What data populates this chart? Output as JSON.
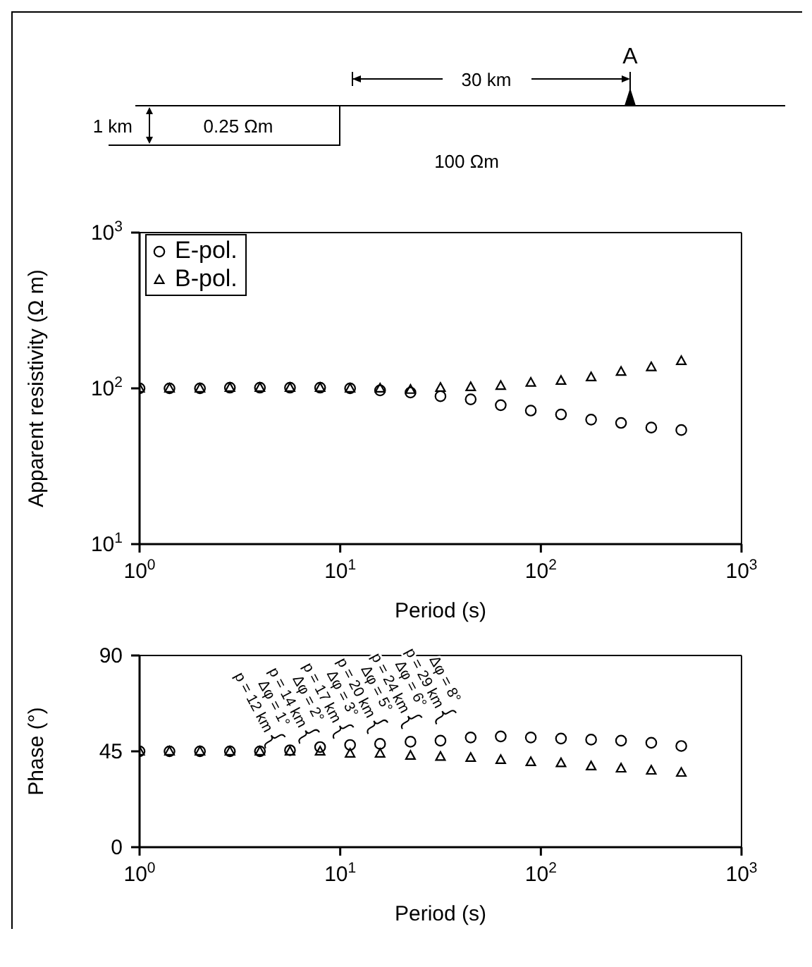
{
  "chart_data": [
    {
      "type": "other",
      "annotations": [
        "A",
        "30 km",
        "1 km",
        "0.25 Ωm",
        "100 Ωm"
      ]
    },
    {
      "type": "scatter",
      "xlabel": "Period (s)",
      "ylabel": "Apparent resistivity (Ω m)",
      "log": "xy",
      "legend": "top left",
      "grid": false,
      "x": [
        1,
        1.41,
        2,
        2.82,
        3.98,
        5.62,
        7.94,
        11.2,
        15.8,
        22.4,
        31.6,
        44.7,
        63.1,
        89.1,
        126,
        178,
        251,
        355,
        501
      ],
      "series": [
        {
          "name": "E-pol.",
          "color": "#000000",
          "marker": "circle",
          "values": [
            100,
            100,
            100,
            101,
            101,
            101,
            101,
            100,
            97,
            94,
            89,
            85,
            78,
            72,
            68,
            63,
            60,
            56,
            54
          ]
        },
        {
          "name": "B-pol.",
          "color": "#000000",
          "marker": "triangle",
          "values": [
            100,
            100,
            100,
            101,
            101,
            101,
            101,
            100,
            100,
            98,
            101,
            102,
            104,
            109,
            112,
            118,
            128,
            137,
            150
          ]
        }
      ],
      "xlim": [
        1,
        1000
      ],
      "ylim": [
        10,
        1000
      ],
      "xticks": [
        {
          "value": 1,
          "label": "10$^{0}$"
        },
        {
          "value": 10,
          "label": "10$^{1}$"
        },
        {
          "value": 100,
          "label": "10$^{2}$"
        },
        {
          "value": 1000,
          "label": "10$^{3}$"
        }
      ],
      "yticks": [
        {
          "value": 10,
          "label": "10$^{1}$"
        },
        {
          "value": 100,
          "label": "10$^{2}$"
        },
        {
          "value": 1000,
          "label": "10$^{3}$"
        }
      ]
    },
    {
      "type": "scatter",
      "xlabel": "Period (s)",
      "ylabel": "Phase (°)",
      "log": "x",
      "grid": false,
      "x": [
        1,
        1.41,
        2,
        2.82,
        3.98,
        5.62,
        7.94,
        11.2,
        15.8,
        22.4,
        31.6,
        44.7,
        63.1,
        89.1,
        126,
        178,
        251,
        355,
        501
      ],
      "series": [
        {
          "color": "#000000",
          "marker": "circle",
          "values": [
            45,
            45,
            45,
            45,
            45,
            45.5,
            47,
            48,
            48.5,
            49.5,
            50,
            51.5,
            52,
            51.5,
            51,
            50.5,
            50,
            49,
            47.5
          ]
        },
        {
          "color": "#000000",
          "marker": "triangle",
          "values": [
            45,
            45,
            45,
            45,
            45,
            45,
            45,
            44,
            44,
            43,
            42.5,
            42,
            41,
            40,
            39.5,
            38,
            37,
            36,
            35
          ]
        }
      ],
      "xlim": [
        1,
        1000
      ],
      "ylim": [
        0,
        90
      ],
      "xticks": [
        {
          "value": 1,
          "label": "10$^{0}$"
        },
        {
          "value": 10,
          "label": "10$^{1}$"
        },
        {
          "value": 100,
          "label": "10$^{2}$"
        },
        {
          "value": 1000,
          "label": "10$^{3}$"
        }
      ],
      "yticks": [
        0,
        45,
        90
      ],
      "annotations": [
        "p = 12 km",
        "Δφ = 1°",
        "p = 14 km",
        "Δφ = 2°",
        "p = 17 km",
        "Δφ = 3°",
        "p = 20 km",
        "Δφ = 5°",
        "p = 24 km",
        "Δφ = 6°",
        "p = 29 km",
        "Δφ = 8°"
      ]
    }
  ]
}
